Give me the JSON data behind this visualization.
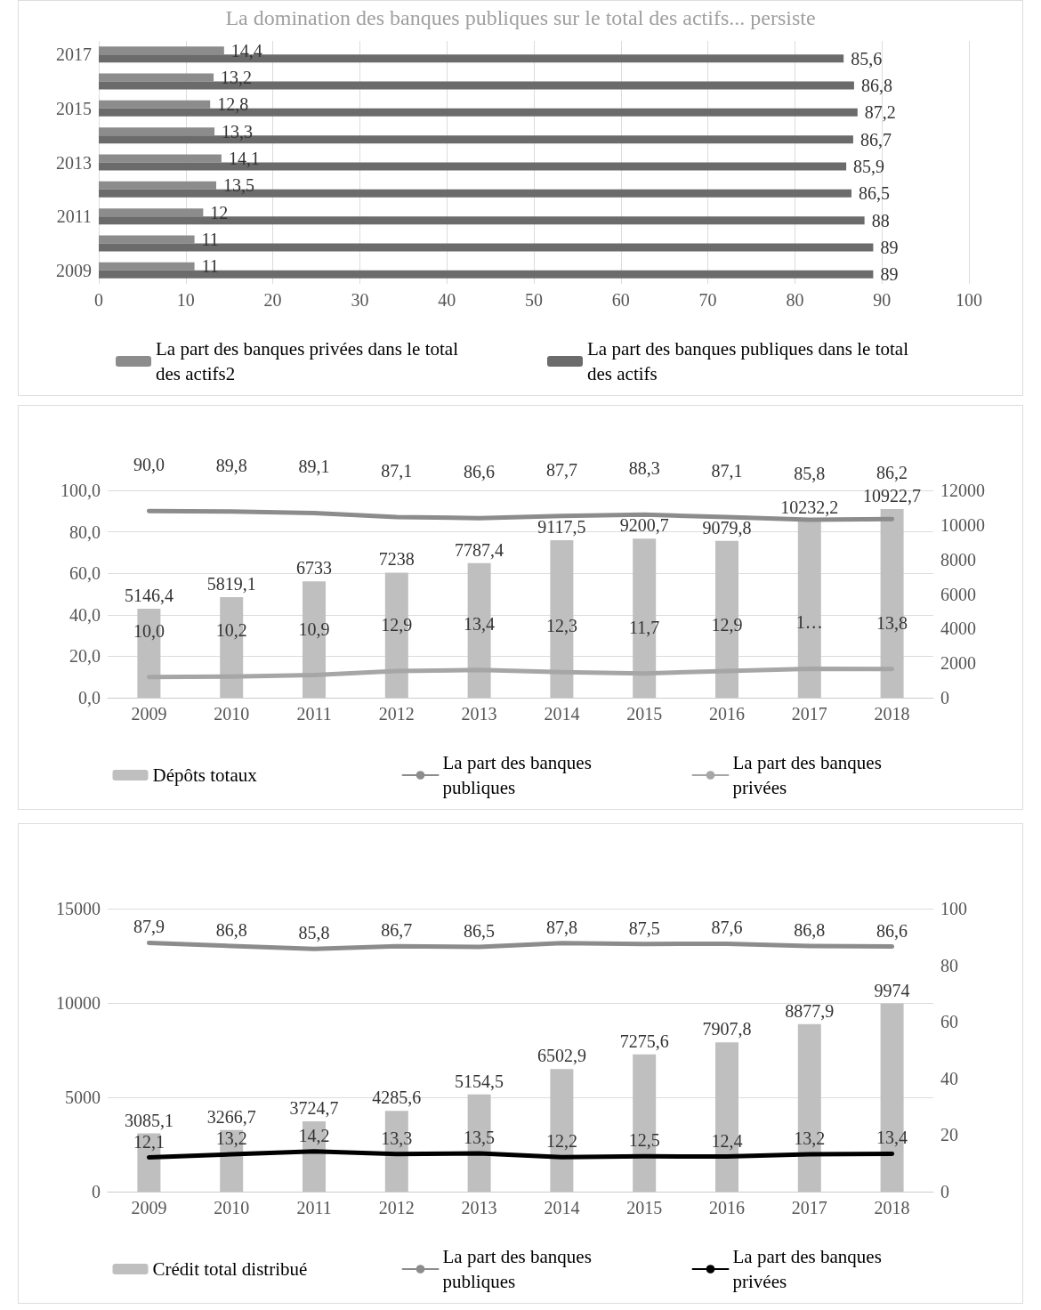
{
  "chart_data": [
    {
      "type": "bar",
      "title": "La domination des banques publiques sur le total des actifs... persiste",
      "orientation": "horizontal",
      "categories": [
        "2017",
        null,
        "2015",
        null,
        "2013",
        null,
        "2011",
        null,
        "2009"
      ],
      "series": [
        {
          "name": "La part des banques privées dans le total des actifs2",
          "color": "#8c8c8c",
          "values": [
            14.4,
            13.2,
            12.8,
            13.3,
            14.1,
            13.5,
            12,
            11,
            11
          ],
          "value_labels": [
            "14,4",
            "13,2",
            "12,8",
            "13,3",
            "14,1",
            "13,5",
            "12",
            "11",
            "11"
          ]
        },
        {
          "name": "La part des banques publiques dans le total des actifs",
          "color": "#6b6b6b",
          "values": [
            85.6,
            86.8,
            87.2,
            86.7,
            85.9,
            86.5,
            88,
            89,
            89
          ],
          "value_labels": [
            "85,6",
            "86,8",
            "87,2",
            "86,7",
            "85,9",
            "86,5",
            "88",
            "89",
            "89"
          ]
        }
      ],
      "xlim": [
        0,
        100
      ],
      "xticks": [
        0,
        10,
        20,
        30,
        40,
        50,
        60,
        70,
        80,
        90,
        100
      ],
      "grid": "x",
      "legend": "bottom"
    },
    {
      "type": "bar",
      "categories": [
        "2009",
        "2010",
        "2011",
        "2012",
        "2013",
        "2014",
        "2015",
        "2016",
        "2017",
        "2018"
      ],
      "series": [
        {
          "name": "Dépôts totaux",
          "axis": "y2",
          "color": "#bfbfbf",
          "values": [
            5146.4,
            5819.1,
            6733,
            7238,
            7787.4,
            9117.5,
            9200.7,
            9079.8,
            10232.2,
            10922.7
          ],
          "value_labels": [
            "5146,4",
            "5819,1",
            "6733",
            "7238",
            "7787,4",
            "9117,5",
            "9200,7",
            "9079,8",
            "10232,2",
            "10922,7"
          ]
        },
        {
          "name": "La part des banques publiques",
          "type": "line",
          "color": "#8c8c8c",
          "values": [
            90.0,
            89.8,
            89.1,
            87.1,
            86.6,
            87.7,
            88.3,
            87.1,
            85.8,
            86.2
          ],
          "value_labels": [
            "90,0",
            "89,8",
            "89,1",
            "87,1",
            "86,6",
            "87,7",
            "88,3",
            "87,1",
            "85,8",
            "86,2"
          ]
        },
        {
          "name": "La part des banques privées",
          "type": "line",
          "color": "#a6a6a6",
          "values": [
            10.0,
            10.2,
            10.9,
            12.9,
            13.4,
            12.3,
            11.7,
            12.9,
            14.0,
            13.8
          ],
          "value_labels": [
            "10,0",
            "10,2",
            "10,9",
            "12,9",
            "13,4",
            "12,3",
            "11,7",
            "12,9",
            "1…",
            "13,8"
          ]
        }
      ],
      "ylim": [
        0,
        100
      ],
      "yticks": [
        {
          "value": 0,
          "label": "0,0"
        },
        {
          "value": 20,
          "label": "20,0"
        },
        {
          "value": 40,
          "label": "40,0"
        },
        {
          "value": 60,
          "label": "60,0"
        },
        {
          "value": 80,
          "label": "80,0"
        },
        {
          "value": 100,
          "label": "100,0"
        }
      ],
      "y2lim": [
        0,
        12000
      ],
      "y2ticks": [
        0,
        2000,
        4000,
        6000,
        8000,
        10000,
        12000
      ],
      "grid": "y",
      "legend": "bottom",
      "marker": "none",
      "line_style": "solid"
    },
    {
      "type": "bar",
      "categories": [
        "2009",
        "2010",
        "2011",
        "2012",
        "2013",
        "2014",
        "2015",
        "2016",
        "2017",
        "2018"
      ],
      "series": [
        {
          "name": "Crédit total distribué",
          "color": "#bfbfbf",
          "values": [
            3085.1,
            3266.7,
            3724.7,
            4285.6,
            5154.5,
            6502.9,
            7275.6,
            7907.8,
            8877.9,
            9974
          ],
          "value_labels": [
            "3085,1",
            "3266,7",
            "3724,7",
            "4285,6",
            "5154,5",
            "6502,9",
            "7275,6",
            "7907,8",
            "8877,9",
            "9974"
          ]
        },
        {
          "name": "La part des banques publiques",
          "type": "line",
          "axis": "y2",
          "color": "#8c8c8c",
          "values": [
            87.9,
            86.8,
            85.8,
            86.7,
            86.5,
            87.8,
            87.5,
            87.6,
            86.8,
            86.6
          ],
          "value_labels": [
            "87,9",
            "86,8",
            "85,8",
            "86,7",
            "86,5",
            "87,8",
            "87,5",
            "87,6",
            "86,8",
            "86,6"
          ]
        },
        {
          "name": "La part des banques privées",
          "type": "line",
          "axis": "y2",
          "color": "#000000",
          "values": [
            12.1,
            13.2,
            14.2,
            13.3,
            13.5,
            12.2,
            12.5,
            12.4,
            13.2,
            13.4
          ],
          "value_labels": [
            "12,1",
            "13,2",
            "14,2",
            "13,3",
            "13,5",
            "12,2",
            "12,5",
            "12,4",
            "13,2",
            "13,4"
          ]
        }
      ],
      "ylim": [
        0,
        15000
      ],
      "yticks": [
        0,
        5000,
        10000,
        15000
      ],
      "y2lim": [
        0,
        100
      ],
      "y2ticks": [
        0,
        20,
        40,
        60,
        80,
        100
      ],
      "grid": "y",
      "legend": "bottom",
      "marker": "none",
      "line_style": "solid"
    }
  ]
}
